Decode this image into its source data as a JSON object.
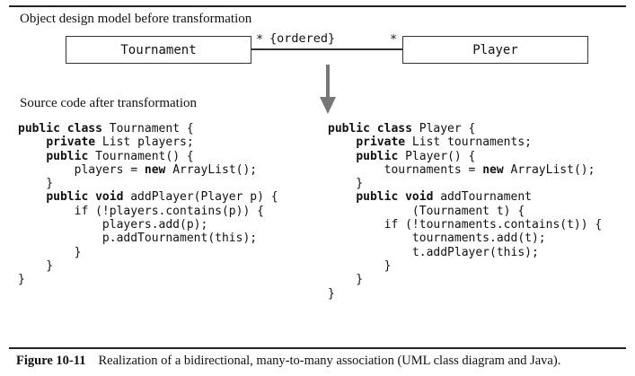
{
  "diagram": {
    "model_label": "Object design model before transformation",
    "source_label": "Source code after transformation",
    "class_left": "Tournament",
    "class_right": "Player",
    "multiplicity_left": "*",
    "multiplicity_right": "*",
    "constraint": "{ordered}"
  },
  "code_left": [
    [
      {
        "t": "public class",
        "k": true
      },
      {
        "t": " Tournament {"
      }
    ],
    [
      {
        "t": "    "
      },
      {
        "t": "private",
        "k": true
      },
      {
        "t": " List players;"
      }
    ],
    [
      {
        "t": "    "
      },
      {
        "t": "public",
        "k": true
      },
      {
        "t": " Tournament() {"
      }
    ],
    [
      {
        "t": "        players = "
      },
      {
        "t": "new",
        "k": true
      },
      {
        "t": " ArrayList();"
      }
    ],
    [
      {
        "t": "    }"
      }
    ],
    [
      {
        "t": "    "
      },
      {
        "t": "public void",
        "k": true
      },
      {
        "t": " addPlayer(Player p) {"
      }
    ],
    [
      {
        "t": "        if (!players.contains(p)) {"
      }
    ],
    [
      {
        "t": "            players.add(p);"
      }
    ],
    [
      {
        "t": "            p.addTournament(this);"
      }
    ],
    [
      {
        "t": "        }"
      }
    ],
    [
      {
        "t": "    }"
      }
    ],
    [
      {
        "t": "}"
      }
    ]
  ],
  "code_right": [
    [
      {
        "t": "public class",
        "k": true
      },
      {
        "t": " Player {"
      }
    ],
    [
      {
        "t": "    "
      },
      {
        "t": "private",
        "k": true
      },
      {
        "t": " List tournaments;"
      }
    ],
    [
      {
        "t": "    "
      },
      {
        "t": "public",
        "k": true
      },
      {
        "t": " Player() {"
      }
    ],
    [
      {
        "t": "        tournaments = "
      },
      {
        "t": "new",
        "k": true
      },
      {
        "t": " ArrayList();"
      }
    ],
    [
      {
        "t": "    }"
      }
    ],
    [
      {
        "t": "    "
      },
      {
        "t": "public void",
        "k": true
      },
      {
        "t": " addTournament"
      }
    ],
    [
      {
        "t": "            (Tournament t) {"
      }
    ],
    [
      {
        "t": "        if (!tournaments.contains(t)) {"
      }
    ],
    [
      {
        "t": "            tournaments.add(t);"
      }
    ],
    [
      {
        "t": "            t.addPlayer(this);"
      }
    ],
    [
      {
        "t": "        }"
      }
    ],
    [
      {
        "t": "    }"
      }
    ],
    [
      {
        "t": "}"
      }
    ]
  ],
  "caption": {
    "number": "Figure 10-11",
    "text": "Realization of a bidirectional, many-to-many association (UML class diagram and Java)."
  }
}
